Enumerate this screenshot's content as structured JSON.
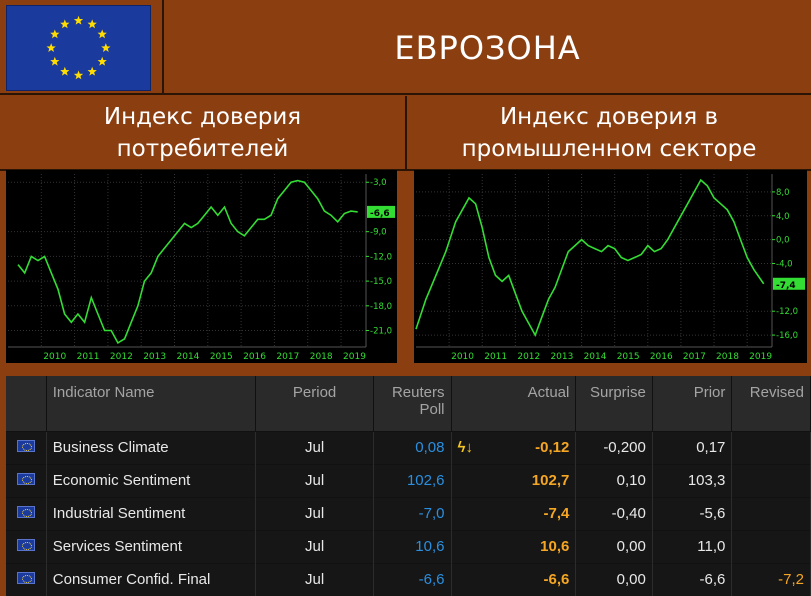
{
  "header": {
    "title": "ЕВРОЗОНА",
    "flag": "eu-flag"
  },
  "panels": [
    {
      "subtitle": "Индекс доверия\nпотребителей"
    },
    {
      "subtitle": "Индекс доверия в\nпромышленном секторе"
    }
  ],
  "chart_data": [
    {
      "type": "line",
      "title": "Индекс доверия потребителей",
      "x_ticks": [
        "2010",
        "2011",
        "2012",
        "2013",
        "2014",
        "2015",
        "2016",
        "2017",
        "2018",
        "2019"
      ],
      "y_ticks": [
        "-3,0",
        "-6,6",
        "-9,0",
        "-12,0",
        "-15,0",
        "-18,0",
        "-21,0"
      ],
      "ylim": [
        -23,
        -2
      ],
      "last_value_label": "-6,6",
      "line_color": "#33dd33",
      "x": [
        2009.3,
        2009.5,
        2009.7,
        2009.9,
        2010.1,
        2010.3,
        2010.5,
        2010.7,
        2010.9,
        2011.1,
        2011.3,
        2011.5,
        2011.7,
        2011.9,
        2012.1,
        2012.3,
        2012.5,
        2012.7,
        2012.9,
        2013.1,
        2013.3,
        2013.5,
        2013.7,
        2013.9,
        2014.1,
        2014.3,
        2014.5,
        2014.7,
        2014.9,
        2015.1,
        2015.3,
        2015.5,
        2015.7,
        2015.9,
        2016.1,
        2016.3,
        2016.5,
        2016.7,
        2016.9,
        2017.1,
        2017.3,
        2017.5,
        2017.7,
        2017.9,
        2018.1,
        2018.3,
        2018.5,
        2018.7,
        2018.9,
        2019.1,
        2019.3,
        2019.5
      ],
      "y": [
        -13,
        -14,
        -12,
        -12.5,
        -12,
        -14,
        -16,
        -19,
        -20,
        -19,
        -20,
        -17,
        -19,
        -21,
        -21,
        -22.5,
        -22,
        -20,
        -18,
        -15,
        -14,
        -12,
        -11,
        -10,
        -9,
        -8,
        -8.5,
        -8,
        -7,
        -6,
        -7,
        -6,
        -8,
        -9,
        -9.5,
        -8.5,
        -7.5,
        -7.5,
        -7,
        -5,
        -4,
        -3,
        -2.8,
        -3,
        -4,
        -5,
        -6.5,
        -7,
        -7.8,
        -6.8,
        -6.5,
        -6.6
      ]
    },
    {
      "type": "line",
      "title": "Индекс доверия в промышленном секторе",
      "x_ticks": [
        "2010",
        "2011",
        "2012",
        "2013",
        "2014",
        "2015",
        "2016",
        "2017",
        "2018",
        "2019"
      ],
      "y_ticks": [
        "8,0",
        "4,0",
        "0,0",
        "-4,0",
        "-7,4",
        "-12,0",
        "-16,0"
      ],
      "ylim": [
        -18,
        11
      ],
      "last_value_label": "-7,4",
      "line_color": "#33dd33",
      "x": [
        2009.0,
        2009.3,
        2009.6,
        2009.9,
        2010.2,
        2010.5,
        2010.6,
        2010.8,
        2011.0,
        2011.2,
        2011.4,
        2011.6,
        2011.8,
        2012.0,
        2012.2,
        2012.4,
        2012.6,
        2012.8,
        2013.0,
        2013.2,
        2013.4,
        2013.6,
        2013.8,
        2014.0,
        2014.2,
        2014.4,
        2014.6,
        2014.8,
        2015.0,
        2015.2,
        2015.4,
        2015.6,
        2015.8,
        2016.0,
        2016.2,
        2016.4,
        2016.6,
        2016.8,
        2017.0,
        2017.2,
        2017.4,
        2017.6,
        2017.8,
        2018.0,
        2018.2,
        2018.4,
        2018.6,
        2018.8,
        2019.0,
        2019.2,
        2019.5
      ],
      "y": [
        -15,
        -10,
        -6,
        -2,
        3,
        6,
        7,
        6,
        2,
        -3,
        -6,
        -7,
        -6,
        -9,
        -12,
        -14,
        -16,
        -13,
        -10,
        -8,
        -5,
        -2,
        -1,
        0,
        -1,
        -1.5,
        -2,
        -1,
        -1.5,
        -3,
        -3.5,
        -3,
        -2.5,
        -1,
        -2,
        -1.5,
        0,
        2,
        4,
        6,
        8,
        10,
        9,
        7,
        6,
        5,
        3,
        0,
        -3,
        -5,
        -7.4
      ]
    }
  ],
  "table": {
    "headers": [
      "Indicator Name",
      "Period",
      "Reuters\nPoll",
      "Actual",
      "Surprise",
      "Prior",
      "Revised"
    ],
    "rows": [
      {
        "name": "Business Climate",
        "period": "Jul",
        "poll": "0,08",
        "actual": "-0,12",
        "surprise": "-0,200",
        "prior": "0,17",
        "revised": "",
        "flag_icon": "lightning-down"
      },
      {
        "name": "Economic Sentiment",
        "period": "Jul",
        "poll": "102,6",
        "actual": "102,7",
        "surprise": "0,10",
        "prior": "103,3",
        "revised": "",
        "flag_icon": ""
      },
      {
        "name": "Industrial Sentiment",
        "period": "Jul",
        "poll": "-7,0",
        "actual": "-7,4",
        "surprise": "-0,40",
        "prior": "-5,6",
        "revised": "",
        "flag_icon": ""
      },
      {
        "name": "Services Sentiment",
        "period": "Jul",
        "poll": "10,6",
        "actual": "10,6",
        "surprise": "0,00",
        "prior": "11,0",
        "revised": "",
        "flag_icon": ""
      },
      {
        "name": "Consumer Confid. Final",
        "period": "Jul",
        "poll": "-6,6",
        "actual": "-6,6",
        "surprise": "0,00",
        "prior": "-6,6",
        "revised": "-7,2",
        "flag_icon": ""
      }
    ]
  }
}
